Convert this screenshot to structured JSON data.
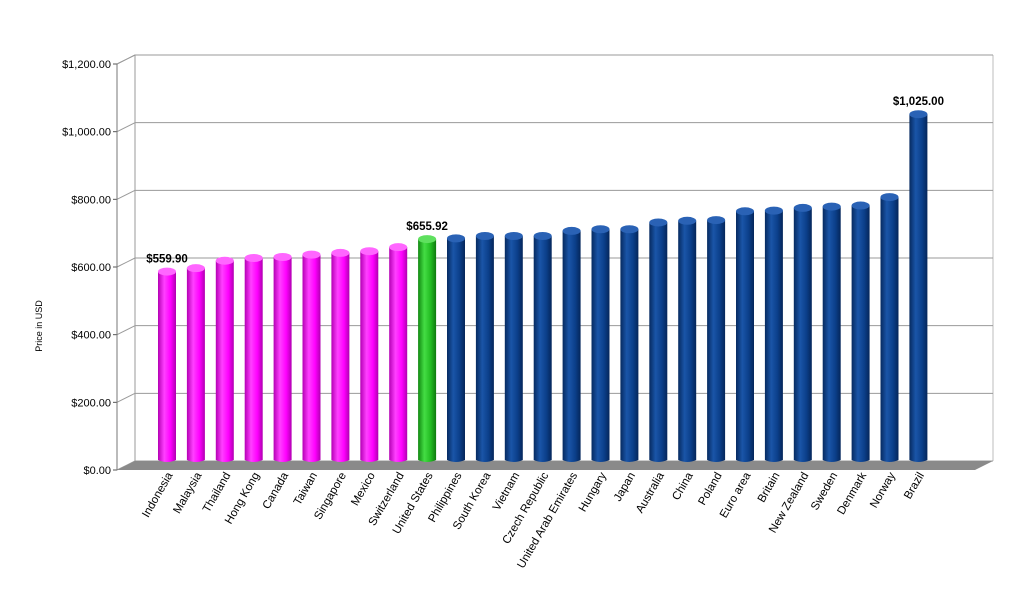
{
  "chart_data": {
    "type": "bar",
    "title": "",
    "xlabel": "",
    "ylabel": "Price in USD",
    "ylim": [
      0,
      1200
    ],
    "yticks": [
      0,
      200,
      400,
      600,
      800,
      1000,
      1200
    ],
    "ytick_labels": [
      "$0.00",
      "$200.00",
      "$400.00",
      "$600.00",
      "$800.00",
      "$1,000.00",
      "$1,200.00"
    ],
    "grid": true,
    "legend": "none",
    "categories": [
      "Indonesia",
      "Malaysia",
      "Thailand",
      "Hong Kong",
      "Canada",
      "Taiwan",
      "Singapore",
      "Mexico",
      "Switzerland",
      "United States",
      "Philippines",
      "South Korea",
      "Vietnam",
      "Czech Republic",
      "United Arab Emirates",
      "Hungary",
      "Japan",
      "Australia",
      "China",
      "Poland",
      "Euro area",
      "Britain",
      "New Zealand",
      "Sweden",
      "Denmark",
      "Norway",
      "Brazil"
    ],
    "values": [
      559.9,
      570,
      592,
      600,
      603,
      610,
      615,
      620,
      632,
      655.92,
      658,
      665,
      665,
      665,
      680,
      685,
      685,
      705,
      710,
      712,
      738,
      740,
      748,
      752,
      755,
      780,
      1025
    ],
    "groups": [
      "magenta",
      "magenta",
      "magenta",
      "magenta",
      "magenta",
      "magenta",
      "magenta",
      "magenta",
      "magenta",
      "green",
      "blue",
      "blue",
      "blue",
      "blue",
      "blue",
      "blue",
      "blue",
      "blue",
      "blue",
      "blue",
      "blue",
      "blue",
      "blue",
      "blue",
      "blue",
      "blue",
      "blue"
    ],
    "data_labels": [
      {
        "index": 0,
        "text": "$559.90"
      },
      {
        "index": 9,
        "text": "$655.92"
      },
      {
        "index": 26,
        "text": "$1,025.00"
      }
    ],
    "colors": {
      "magenta": "#ff00ff",
      "green": "#22bb22",
      "blue": "#0b3f8a",
      "grid": "#9a9a9a",
      "floor": "#8a8a8a"
    }
  }
}
